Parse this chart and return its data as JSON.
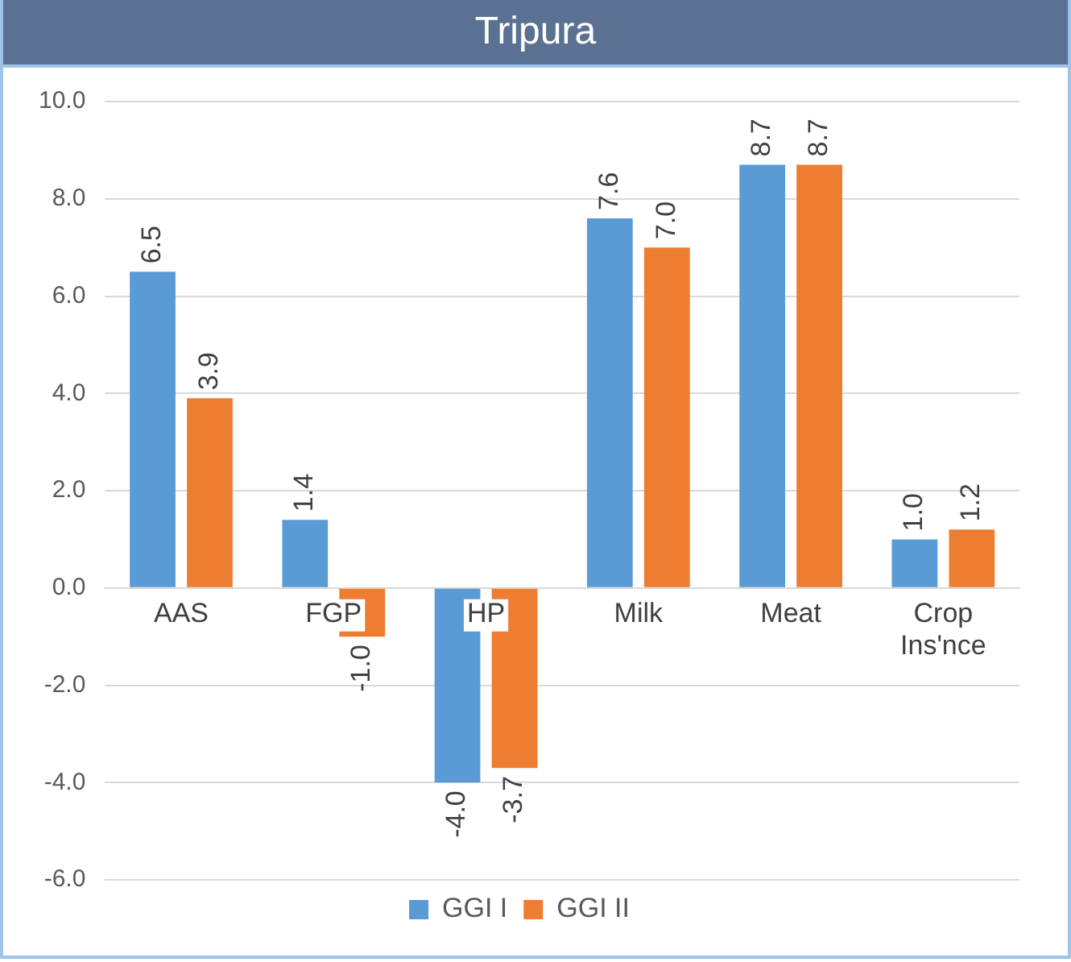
{
  "chart_data": {
    "type": "bar",
    "title": "Tripura",
    "categories": [
      "AAS",
      "FGP",
      "HP",
      "Milk",
      "Meat",
      "Crop Ins'nce"
    ],
    "series": [
      {
        "name": "GGI I",
        "color": "#5b9bd5",
        "values": [
          6.5,
          1.4,
          -4.0,
          7.6,
          8.7,
          1.0
        ],
        "value_labels": [
          "6.5",
          "1.4",
          "-4.0",
          "7.6",
          "8.7",
          "1.0"
        ]
      },
      {
        "name": "GGI II",
        "color": "#ed7d31",
        "values": [
          3.9,
          -1.0,
          -3.7,
          7.0,
          8.7,
          1.2
        ],
        "value_labels": [
          "3.9",
          "-1.0",
          "-3.7",
          "7.0",
          "8.7",
          "1.2"
        ]
      }
    ],
    "ylim": [
      -6,
      10
    ],
    "yticks": [
      {
        "value": -6,
        "label": "-6.0"
      },
      {
        "value": -4,
        "label": "-4.0"
      },
      {
        "value": -2,
        "label": "-2.0"
      },
      {
        "value": 0,
        "label": "0.0"
      },
      {
        "value": 2,
        "label": "2.0"
      },
      {
        "value": 4,
        "label": "4.0"
      },
      {
        "value": 6,
        "label": "6.0"
      },
      {
        "value": 8,
        "label": "8.0"
      },
      {
        "value": 10,
        "label": "10.0"
      }
    ],
    "grid": "y",
    "legend": "bottom"
  }
}
